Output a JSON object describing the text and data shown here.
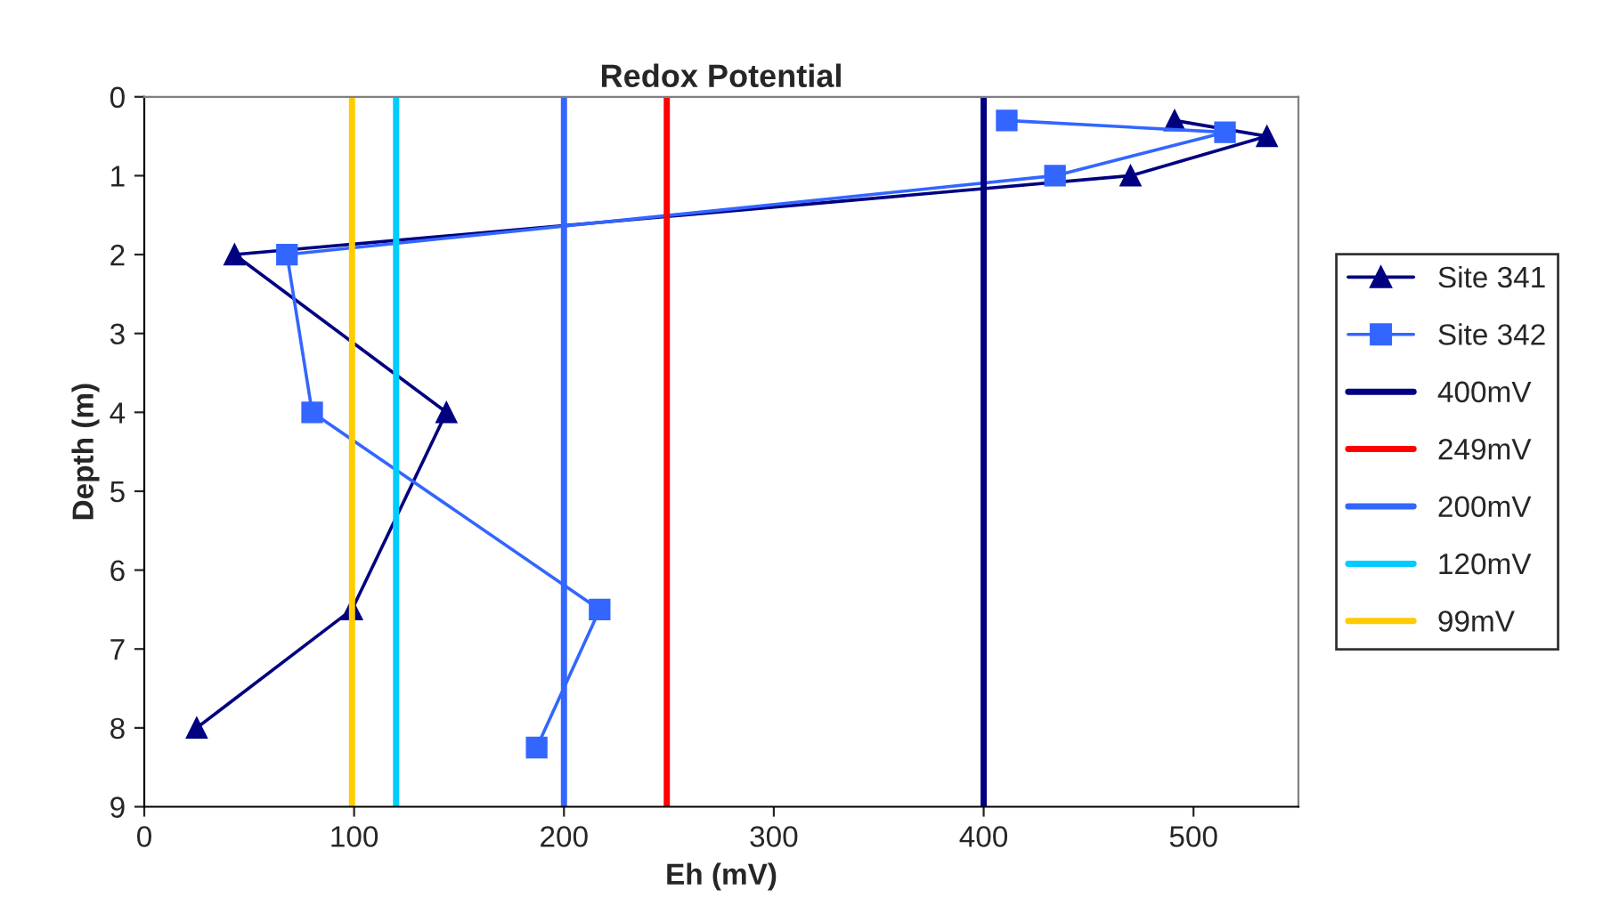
{
  "chart_data": {
    "type": "line",
    "title": "Redox Potential",
    "xlabel": "Eh (mV)",
    "ylabel": "Depth (m)",
    "series": [
      {
        "name": "Site 341",
        "color": "#000080",
        "marker": "triangle",
        "x": [
          491,
          535,
          470,
          43,
          144,
          99,
          25
        ],
        "values": [
          0.3,
          0.5,
          1.0,
          2.0,
          4.0,
          6.5,
          8.0
        ]
      },
      {
        "name": "Site 342",
        "color": "#3366ff",
        "marker": "square",
        "x": [
          411,
          515,
          434,
          68,
          80,
          217,
          187
        ],
        "values": [
          0.3,
          0.45,
          1.0,
          2.0,
          4.0,
          6.5,
          8.25
        ]
      },
      {
        "name": "400mV",
        "color": "#000080",
        "marker": "none",
        "x": [
          400,
          400
        ],
        "values": [
          0,
          9
        ]
      },
      {
        "name": "249mV",
        "color": "#ff0000",
        "marker": "none",
        "x": [
          249,
          249
        ],
        "values": [
          0,
          9
        ]
      },
      {
        "name": "200mV",
        "color": "#3366ff",
        "marker": "none",
        "x": [
          200,
          200
        ],
        "values": [
          0,
          9
        ]
      },
      {
        "name": "120mV",
        "color": "#00ccff",
        "marker": "none",
        "x": [
          120,
          120
        ],
        "values": [
          0,
          9
        ]
      },
      {
        "name": "99mV",
        "color": "#ffcc00",
        "marker": "none",
        "x": [
          99,
          99
        ],
        "values": [
          0,
          9
        ]
      }
    ],
    "xlim": [
      0,
      550
    ],
    "xticks": [
      0,
      100,
      200,
      300,
      400,
      500
    ],
    "ylim": [
      9,
      0
    ],
    "yticks": [
      0,
      1,
      2,
      3,
      4,
      5,
      6,
      7,
      8,
      9
    ],
    "grid": false,
    "legend": "right",
    "line_style": "solid"
  }
}
